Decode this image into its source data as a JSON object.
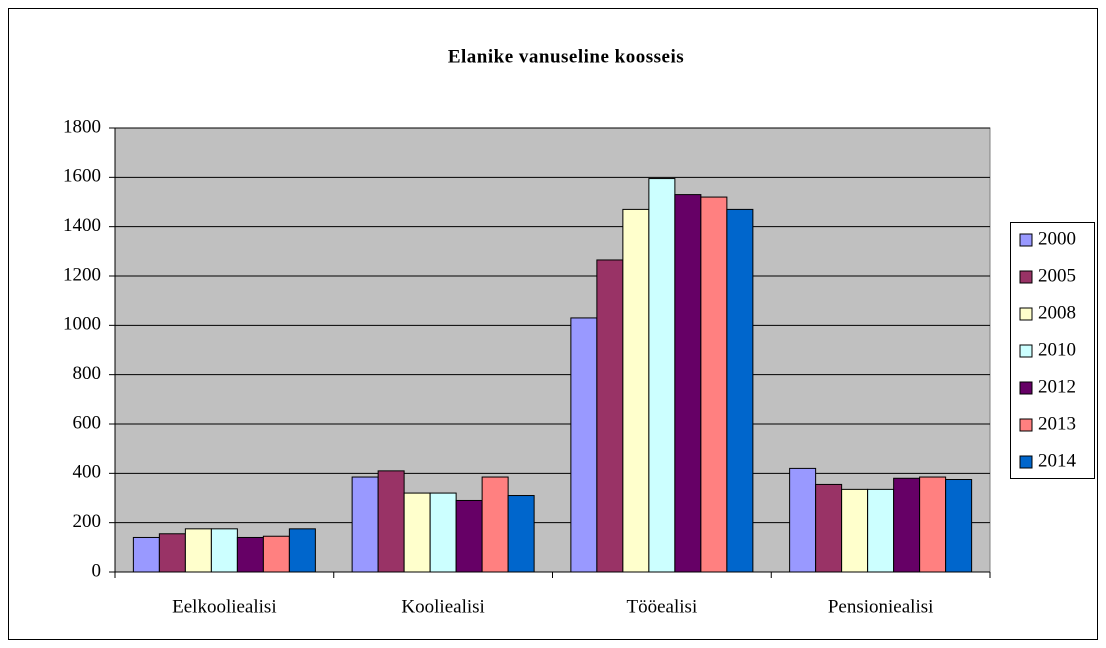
{
  "chart_data": {
    "type": "bar",
    "title": "Elanike vanuseline koosseis",
    "categories": [
      "Eelkooliealisi",
      "Kooliealisi",
      "Tööealisi",
      "Pensioniealisi"
    ],
    "series": [
      {
        "name": "2000",
        "color": "#9999ff",
        "values": [
          140,
          385,
          1030,
          420
        ]
      },
      {
        "name": "2005",
        "color": "#993366",
        "values": [
          155,
          410,
          1265,
          355
        ]
      },
      {
        "name": "2008",
        "color": "#ffffcc",
        "values": [
          175,
          320,
          1470,
          335
        ]
      },
      {
        "name": "2010",
        "color": "#ccffff",
        "values": [
          175,
          320,
          1595,
          335
        ]
      },
      {
        "name": "2012",
        "color": "#660066",
        "values": [
          140,
          290,
          1530,
          380
        ]
      },
      {
        "name": "2013",
        "color": "#ff8080",
        "values": [
          145,
          385,
          1520,
          385
        ]
      },
      {
        "name": "2014",
        "color": "#0066cc",
        "values": [
          175,
          310,
          1470,
          375
        ]
      }
    ],
    "ylim": [
      0,
      1800
    ],
    "yticks": [
      0,
      200,
      400,
      600,
      800,
      1000,
      1200,
      1400,
      1600,
      1800
    ],
    "grid": true,
    "legend": "right"
  }
}
